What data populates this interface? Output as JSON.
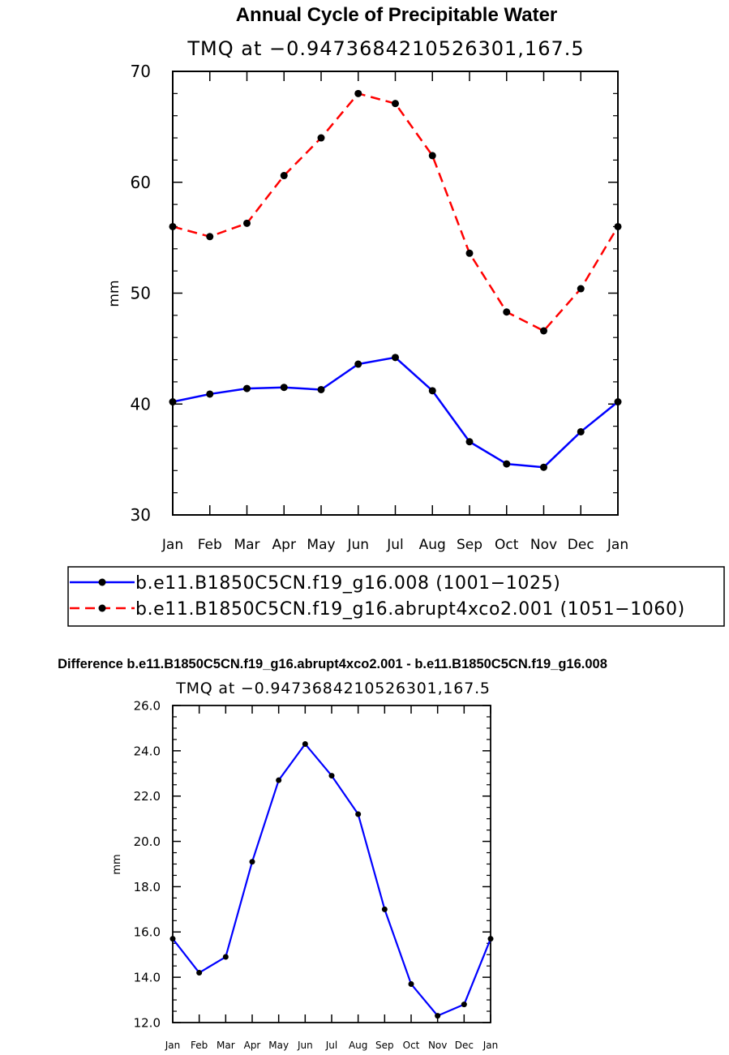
{
  "chart_data": [
    {
      "type": "line",
      "title": "Annual Cycle of Precipitable Water",
      "subtitle": "TMQ at −0.9473684210526301,167.5",
      "xlabel": "",
      "ylabel": "mm",
      "categories": [
        "Jan",
        "Feb",
        "Mar",
        "Apr",
        "May",
        "Jun",
        "Jul",
        "Aug",
        "Sep",
        "Oct",
        "Nov",
        "Dec",
        "Jan"
      ],
      "ylim": [
        30,
        70
      ],
      "yticks": [
        "30",
        "40",
        "50",
        "60",
        "70"
      ],
      "series": [
        {
          "name": "b.e11.B1850C5CN.f19_g16.008 (1001−1025)",
          "color": "#0000ff",
          "dash": "solid",
          "values": [
            40.2,
            40.9,
            41.4,
            41.5,
            41.3,
            43.6,
            44.2,
            41.2,
            36.6,
            34.6,
            34.3,
            37.5,
            40.2
          ]
        },
        {
          "name": "b.e11.B1850C5CN.f19_g16.abrupt4xco2.001 (1051−1060)",
          "color": "#ff0000",
          "dash": "dashed",
          "values": [
            56.0,
            55.1,
            56.3,
            60.6,
            64.0,
            68.0,
            67.1,
            62.4,
            53.6,
            48.3,
            46.6,
            50.4,
            56.0
          ]
        }
      ]
    },
    {
      "type": "line",
      "title": "Difference b.e11.B1850C5CN.f19_g16.abrupt4xco2.001 - b.e11.B1850C5CN.f19_g16.008",
      "subtitle": "TMQ at −0.9473684210526301,167.5",
      "xlabel": "",
      "ylabel": "mm",
      "categories": [
        "Jan",
        "Feb",
        "Mar",
        "Apr",
        "May",
        "Jun",
        "Jul",
        "Aug",
        "Sep",
        "Oct",
        "Nov",
        "Dec",
        "Jan"
      ],
      "ylim": [
        12,
        26
      ],
      "yticks": [
        "12.0",
        "14.0",
        "16.0",
        "18.0",
        "20.0",
        "22.0",
        "24.0",
        "26.0"
      ],
      "series": [
        {
          "color": "#0000ff",
          "dash": "solid",
          "values": [
            15.7,
            14.2,
            14.9,
            19.1,
            22.7,
            24.3,
            22.9,
            21.2,
            17.0,
            13.7,
            12.3,
            12.8,
            15.7
          ]
        }
      ]
    }
  ]
}
